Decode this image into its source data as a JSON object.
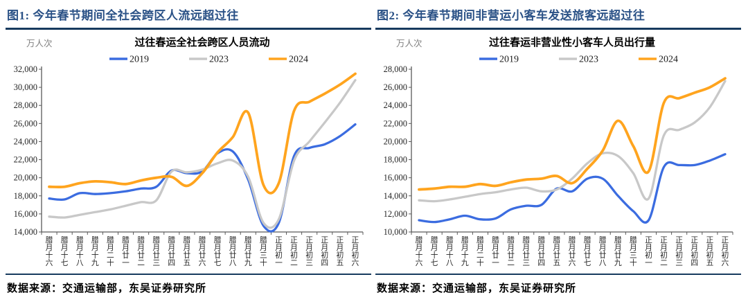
{
  "panels": [
    {
      "fig_title": "图1: 今年春节期间全社会跨区人流远超过往",
      "source_line": "数据来源：交通运输部，东吴证券研究所"
    },
    {
      "fig_title": "图2: 今年春节期间非营运小客车发送旅客远超过往",
      "source_line": "数据来源：交通运输部，东吴证券研究所"
    }
  ],
  "colors": {
    "fig_title": "#2a5186",
    "rule": "#173a5e",
    "axis_line": "#595959",
    "axis_text": "#262626",
    "unit_text": "#808080",
    "series_2019": "#3b6ce0",
    "series_2023": "#c8c8c8",
    "series_2024": "#ffa41e"
  },
  "chart_data": [
    {
      "type": "line",
      "title": "过往春运全社会跨区人员流动",
      "unit_label": "万人次",
      "legend_position": "top",
      "grid": false,
      "ylim": [
        14000,
        32000
      ],
      "ytick_step": 2000,
      "categories": [
        "腊月十六",
        "腊月十七",
        "腊月十八",
        "腊月十九",
        "腊月二十",
        "腊月廿一",
        "腊月廿二",
        "腊月廿三",
        "腊月廿四",
        "腊月廿五",
        "腊月廿六",
        "腊月廿七",
        "腊月廿八",
        "腊月廿九",
        "腊月三十",
        "正月初一",
        "正月初二",
        "正月初三",
        "正月初四",
        "正月初五",
        "正月初六"
      ],
      "series": [
        {
          "name": "2019",
          "values": [
            17700,
            17600,
            18300,
            18200,
            18300,
            18500,
            18800,
            19000,
            20800,
            20500,
            20700,
            22700,
            22900,
            19800,
            14700,
            15000,
            22400,
            23300,
            23700,
            24600,
            25900
          ]
        },
        {
          "name": "2023",
          "values": [
            15700,
            15600,
            15900,
            16200,
            16500,
            16900,
            17300,
            17500,
            20700,
            20600,
            20900,
            21600,
            21900,
            20100,
            15000,
            15400,
            21900,
            24000,
            26100,
            28300,
            30800
          ]
        },
        {
          "name": "2024",
          "values": [
            19000,
            19000,
            19400,
            19600,
            19500,
            19300,
            19700,
            20000,
            20100,
            19100,
            20500,
            22800,
            24500,
            27200,
            19200,
            19400,
            27400,
            28400,
            29300,
            30300,
            31500
          ]
        }
      ]
    },
    {
      "type": "line",
      "title": "过往春运非营业性小客车人员出行量",
      "unit_label": "万人次",
      "legend_position": "top",
      "grid": false,
      "ylim": [
        10000,
        28000
      ],
      "ytick_step": 2000,
      "categories": [
        "腊月十六",
        "腊月十七",
        "腊月十八",
        "腊月十九",
        "腊月二十",
        "腊月廿一",
        "腊月廿二",
        "腊月廿三",
        "腊月廿四",
        "腊月廿五",
        "腊月廿六",
        "腊月廿七",
        "腊月廿八",
        "腊月廿九",
        "腊月三十",
        "正月初一",
        "正月初二",
        "正月初三",
        "正月初四",
        "正月初五",
        "正月初六"
      ],
      "series": [
        {
          "name": "2019",
          "values": [
            11300,
            11100,
            11400,
            11800,
            11400,
            11500,
            12500,
            12900,
            13000,
            14800,
            14500,
            15900,
            15900,
            14000,
            12300,
            11300,
            17200,
            17400,
            17400,
            17900,
            18600
          ]
        },
        {
          "name": "2023",
          "values": [
            13500,
            13400,
            13600,
            13900,
            14200,
            14400,
            14700,
            14900,
            14500,
            14700,
            15900,
            17600,
            18700,
            18400,
            16500,
            13700,
            20700,
            21300,
            22100,
            23800,
            26700
          ]
        },
        {
          "name": "2024",
          "values": [
            14700,
            14800,
            15000,
            15000,
            15300,
            15100,
            15500,
            15800,
            15900,
            16200,
            15400,
            17000,
            19000,
            22300,
            19500,
            16700,
            24300,
            24800,
            25400,
            26000,
            27000
          ]
        }
      ]
    }
  ]
}
